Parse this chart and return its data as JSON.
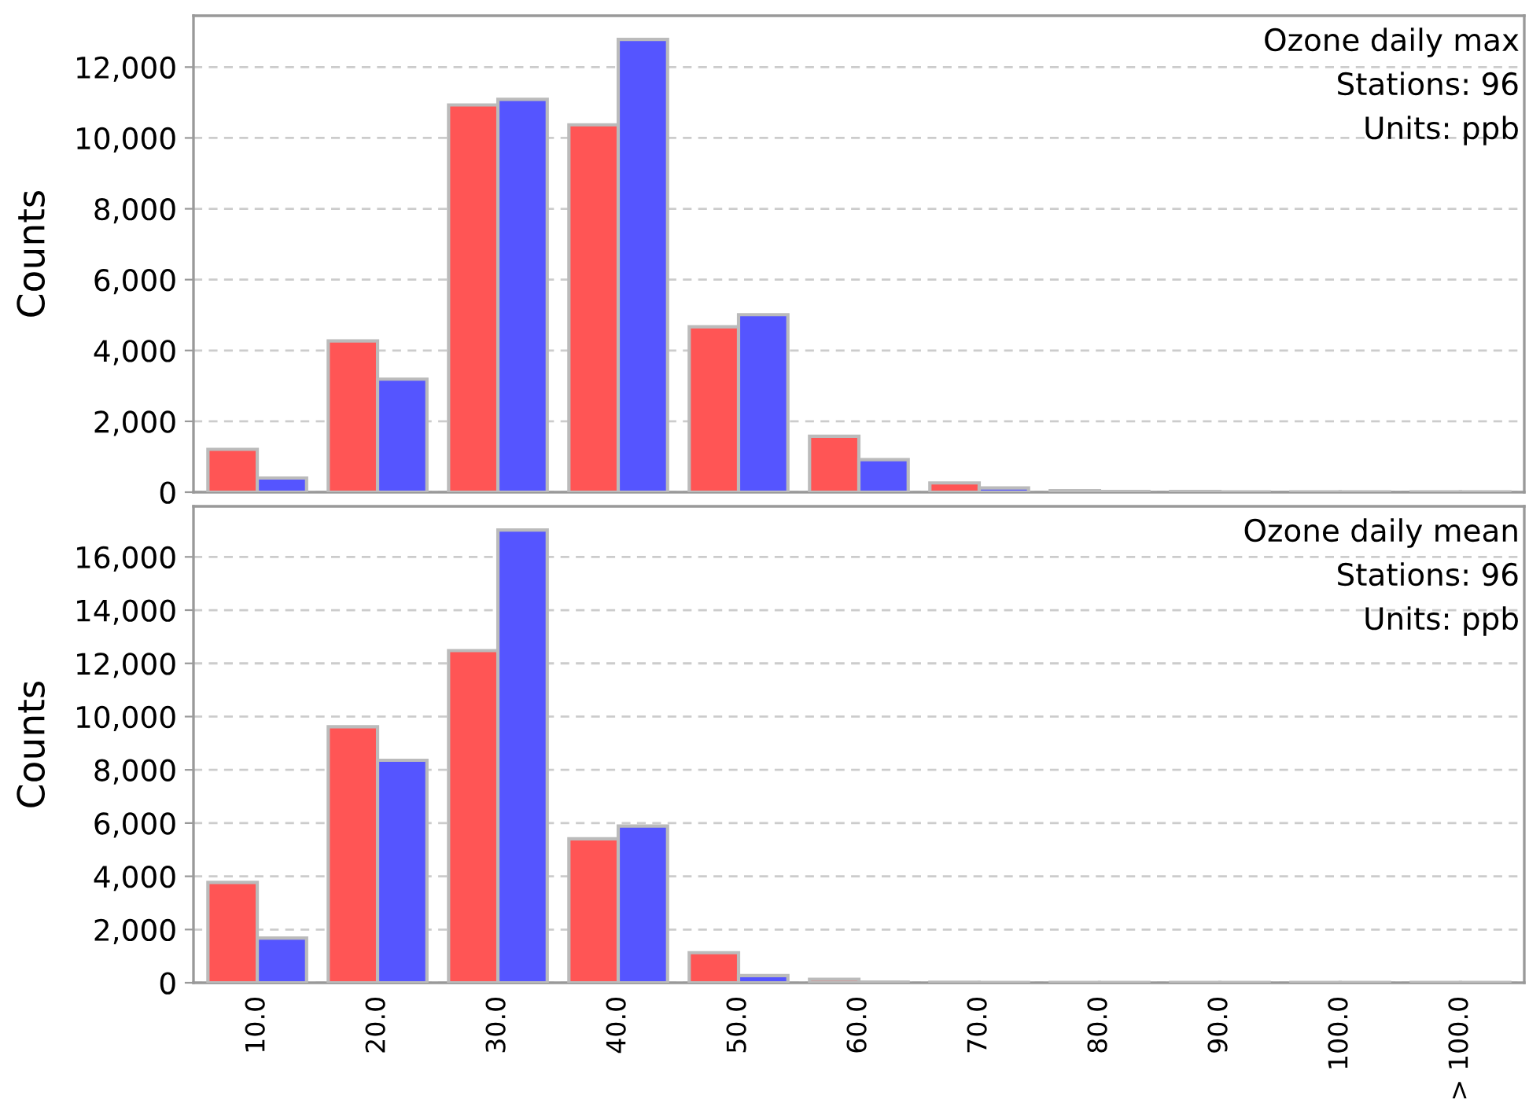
{
  "chart_data": [
    {
      "type": "bar",
      "ylabel": "Counts",
      "annotations": [
        "Ozone daily max",
        "Stations: 96",
        "Units: ppb"
      ],
      "categories": [
        null,
        null,
        null,
        null,
        null,
        null,
        null,
        null,
        null,
        null,
        null
      ],
      "series": [
        {
          "color": "#ff5555",
          "values": [
            1210,
            4270,
            10930,
            10370,
            4670,
            1580,
            260,
            40,
            20,
            10,
            10
          ]
        },
        {
          "color": "#5555ff",
          "values": [
            400,
            3190,
            11090,
            12780,
            5010,
            920,
            120,
            20,
            10,
            10,
            10
          ]
        }
      ],
      "ylim": [
        0,
        13450
      ],
      "yticks": [
        0,
        {
          "value": 2000,
          "label": "2,000"
        },
        {
          "value": 4000,
          "label": "4,000"
        },
        {
          "value": 6000,
          "label": "6,000"
        },
        {
          "value": 8000,
          "label": "8,000"
        },
        {
          "value": 10000,
          "label": "10,000"
        },
        {
          "value": 12000,
          "label": "12,000"
        }
      ],
      "grid": "y"
    },
    {
      "type": "bar",
      "ylabel": "Counts",
      "annotations": [
        "Ozone daily mean",
        "Stations: 96",
        "Units: ppb"
      ],
      "categories": [
        "10.0",
        "20.0",
        "30.0",
        "40.0",
        "50.0",
        "60.0",
        "70.0",
        "80.0",
        "90.0",
        "100.0",
        "> 100.0"
      ],
      "series": [
        {
          "color": "#ff5555",
          "values": [
            3770,
            9620,
            12480,
            5410,
            1130,
            130,
            20,
            10,
            10,
            10,
            10
          ]
        },
        {
          "color": "#5555ff",
          "values": [
            1680,
            8360,
            17010,
            5890,
            270,
            30,
            10,
            10,
            10,
            10,
            10
          ]
        }
      ],
      "ylim": [
        0,
        17900
      ],
      "yticks": [
        0,
        {
          "value": 2000,
          "label": "2,000"
        },
        {
          "value": 4000,
          "label": "4,000"
        },
        {
          "value": 6000,
          "label": "6,000"
        },
        {
          "value": 8000,
          "label": "8,000"
        },
        {
          "value": 10000,
          "label": "10,000"
        },
        {
          "value": 12000,
          "label": "12,000"
        },
        {
          "value": 14000,
          "label": "14,000"
        },
        {
          "value": 16000,
          "label": "16,000"
        }
      ],
      "grid": "y"
    }
  ]
}
